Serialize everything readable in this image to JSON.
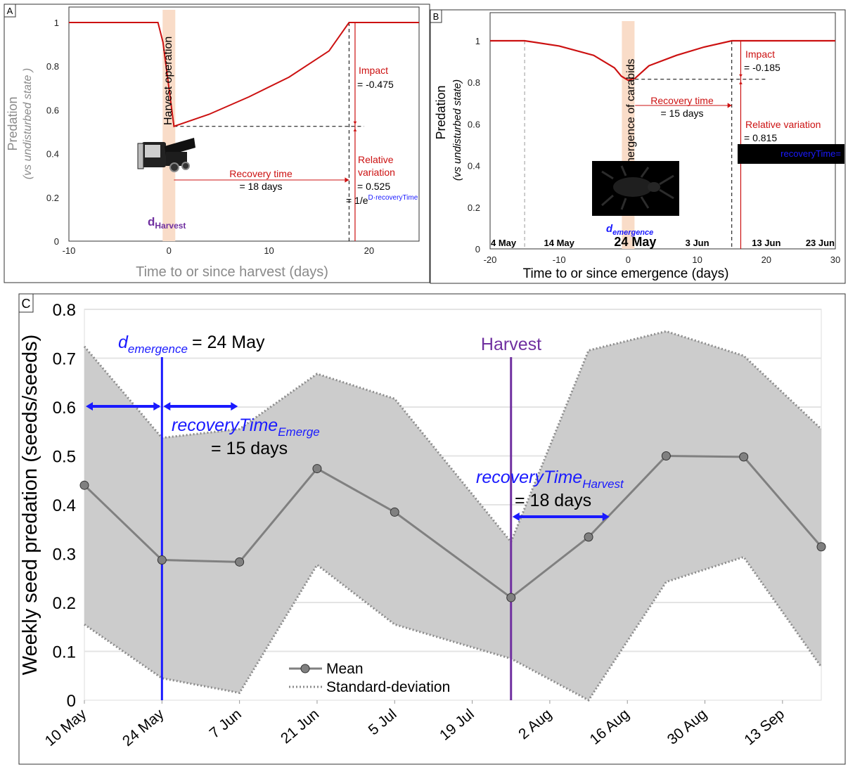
{
  "chart_data": [
    {
      "panel": "A",
      "type": "line",
      "panel_label": "A",
      "xlabel": "Time to or since harvest (days)",
      "ylabel_main": "Predation",
      "ylabel_sub": "(vs undisturbed state )",
      "xlim": [
        -10,
        25
      ],
      "ylim": [
        0,
        1
      ],
      "x_ticks": [
        -10,
        0,
        10,
        20
      ],
      "y_ticks": [
        0,
        0.2,
        0.4,
        0.6,
        0.8,
        1
      ],
      "series": [
        {
          "x": [
            -10,
            -1.1,
            -0.6,
            0.5,
            4,
            8,
            12,
            16,
            18,
            25
          ],
          "y": [
            1,
            1,
            0.91,
            0.525,
            0.58,
            0.66,
            0.75,
            0.87,
            1,
            1
          ]
        }
      ],
      "event_label": "Harvest operation",
      "event_x": 0,
      "d_label_main": "d",
      "d_label_sub": "Harvest",
      "impact_label": "Impact",
      "impact_value": "= -0.475",
      "recovery_label": "Recovery time",
      "recovery_value": "= 18 days",
      "relvar_label_1": "Relative",
      "relvar_label_2": "variation",
      "relvar_value": "= 0.525",
      "formula_main": "= 1/e",
      "formula_sup": "D·recoveryTime",
      "recovery_days": 18,
      "relative_variation": 0.525
    },
    {
      "panel": "B",
      "type": "line",
      "panel_label": "B",
      "xlabel": "Time to or since emergence (days)",
      "ylabel_main": "Predation",
      "ylabel_sub": "(vs undisturbed state)",
      "xlim": [
        -20,
        30
      ],
      "ylim": [
        0,
        1.1
      ],
      "x_ticks": [
        -20,
        -10,
        0,
        10,
        20,
        30
      ],
      "y_ticks": [
        0,
        0.2,
        0.4,
        0.6,
        0.8,
        1
      ],
      "date_ticks": [
        "4 May",
        "14 May",
        "24 May",
        "3 Jun",
        "13 Jun",
        "23 Jun"
      ],
      "series": [
        {
          "x": [
            -20,
            -15,
            -10,
            -5,
            -2,
            -1,
            0,
            1,
            3,
            7,
            11,
            15,
            30
          ],
          "y": [
            1,
            1,
            0.975,
            0.93,
            0.87,
            0.83,
            0.81,
            0.82,
            0.88,
            0.93,
            0.97,
            1,
            1
          ]
        }
      ],
      "event_label": "Emergence of carabids",
      "event_x": 0,
      "d_label_main": "d",
      "d_label_sub": "emergence",
      "impact_label": "Impact",
      "impact_value": "= -0.185",
      "recovery_label": "Recovery time",
      "recovery_value": "= 15 days",
      "relvar_label": "Relative variation",
      "relvar_value": "= 0.815",
      "black_box_text": "recoveryTime=",
      "recovery_days": 15,
      "relative_variation": 0.815
    },
    {
      "panel": "C",
      "type": "line",
      "panel_label": "C",
      "ylabel": "Weekly seed predation (seeds/seeds)",
      "ylim": [
        0,
        0.8
      ],
      "y_ticks": [
        0,
        0.1,
        0.2,
        0.3,
        0.4,
        0.5,
        0.6,
        0.7,
        0.8
      ],
      "x_ticks": [
        "10 May",
        "24 May",
        "7 Jun",
        "21 Jun",
        "5 Jul",
        "19 Jul",
        "2 Aug",
        "16 Aug",
        "30 Aug",
        "13 Sep"
      ],
      "x_tick_days": [
        0,
        14,
        28,
        42,
        56,
        70,
        84,
        98,
        112,
        126
      ],
      "mean": {
        "name": "Mean",
        "x": [
          0,
          14,
          28,
          42,
          56,
          77,
          91,
          105,
          119,
          133
        ],
        "y": [
          0.44,
          0.287,
          0.283,
          0.474,
          0.385,
          0.21,
          0.334,
          0.5,
          0.498,
          0.314
        ]
      },
      "sd_upper": [
        0.724,
        0.537,
        0.555,
        0.668,
        0.617,
        0.324,
        0.716,
        0.755,
        0.705,
        0.555
      ],
      "sd_lower": [
        0.155,
        0.045,
        0.015,
        0.277,
        0.155,
        0.085,
        0.0,
        0.242,
        0.293,
        0.068
      ],
      "sd_name": "Standard-deviation",
      "emergence_x": 14,
      "harvest_x": 77,
      "emergence_label_main": "d",
      "emergence_label_sub": "emergence",
      "emergence_label_value": "= 24 May",
      "harvest_label": "Harvest",
      "rt_emerge_main": "recoveryTime",
      "rt_emerge_sub": "Emerge",
      "rt_emerge_value": "= 15 days",
      "rt_harvest_main": "recoveryTime",
      "rt_harvest_sub": "Harvest",
      "rt_harvest_value": "= 18 days",
      "colors": {
        "band": "#cccccc",
        "mean": "#808080",
        "emergence": "#1a1aff",
        "harvest": "#7030a0",
        "arrow": "#1a1aff"
      }
    }
  ]
}
